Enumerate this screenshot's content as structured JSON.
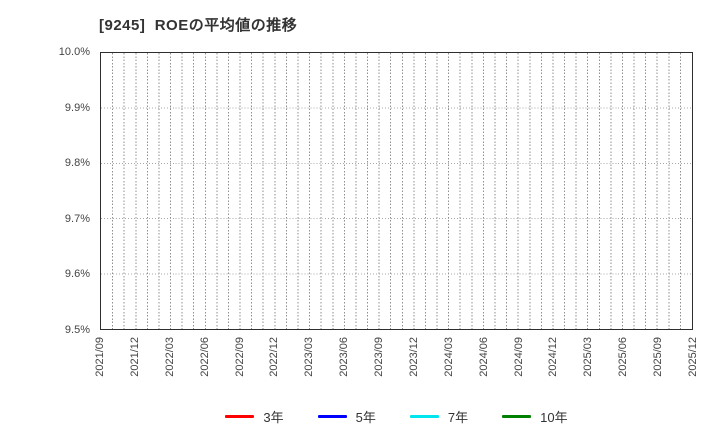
{
  "chart_data": {
    "type": "line",
    "title": "[9245]  ROEの平均値の推移",
    "x_labels": [
      "2021/09",
      "2021/12",
      "2022/03",
      "2022/06",
      "2022/09",
      "2022/12",
      "2023/03",
      "2023/06",
      "2023/09",
      "2023/12",
      "2024/03",
      "2024/06",
      "2024/09",
      "2024/12",
      "2025/03",
      "2025/06",
      "2025/09",
      "2025/12"
    ],
    "x_minor_per_interval": 2,
    "ylim": [
      9.5,
      10.0
    ],
    "ytick_labels": [
      "10.0%",
      "9.9%",
      "9.8%",
      "9.7%",
      "9.6%",
      "9.5%"
    ],
    "grid": true,
    "legend_position": "bottom",
    "series": [
      {
        "name": "3年",
        "color": "#ff0000",
        "values": []
      },
      {
        "name": "5年",
        "color": "#0000ff",
        "values": []
      },
      {
        "name": "7年",
        "color": "#00e5ee",
        "values": []
      },
      {
        "name": "10年",
        "color": "#008000",
        "values": []
      }
    ]
  }
}
